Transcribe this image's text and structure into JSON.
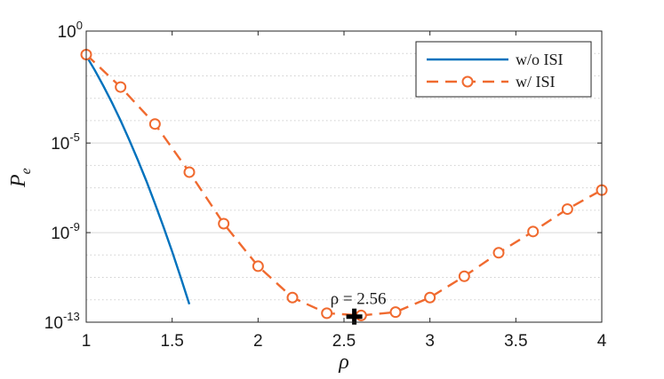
{
  "chart_data": {
    "type": "line",
    "xlabel": "ρ",
    "ylabel": "P",
    "ylabel_sub": "e",
    "yscale": "log",
    "xlim": [
      1,
      4
    ],
    "ylim_exp": [
      -13,
      0
    ],
    "x_ticks": [
      1,
      1.5,
      2,
      2.5,
      3,
      3.5,
      4
    ],
    "x_tick_labels": [
      "1",
      "1.5",
      "2",
      "2.5",
      "3",
      "3.5",
      "4"
    ],
    "y_tick_exponents": [
      0,
      -5,
      -9,
      -13
    ],
    "y_tick_base": "10",
    "y_tick_exp_labels": [
      "0",
      "-5",
      "-9",
      "-13"
    ],
    "legend_position": "top-right",
    "grid": true,
    "series": [
      {
        "name": "w/o ISI",
        "color": "#0072BD",
        "style": "solid",
        "marker": "none",
        "x": [
          1.0,
          1.05,
          1.1,
          1.15,
          1.2,
          1.25,
          1.3,
          1.35,
          1.4,
          1.45,
          1.5,
          1.55,
          1.6
        ],
        "y_exp": [
          -1.1,
          -1.75,
          -2.45,
          -3.2,
          -4.0,
          -4.85,
          -5.75,
          -6.7,
          -7.7,
          -8.75,
          -9.85,
          -11.0,
          -12.2
        ]
      },
      {
        "name": "w/ ISI",
        "color": "#F06A2F",
        "style": "dashed",
        "marker": "circle",
        "x": [
          1.0,
          1.2,
          1.4,
          1.6,
          1.8,
          2.0,
          2.2,
          2.4,
          2.6,
          2.8,
          3.0,
          3.2,
          3.4,
          3.6,
          3.8,
          4.0
        ],
        "y_exp": [
          -1.05,
          -2.5,
          -4.15,
          -6.3,
          -8.6,
          -10.5,
          -11.9,
          -12.6,
          -12.7,
          -12.55,
          -11.9,
          -10.95,
          -9.9,
          -8.95,
          -7.95,
          -7.1
        ]
      }
    ],
    "annotation": {
      "text": "ρ = 2.56",
      "x": 2.56,
      "y_exp": -12.75,
      "marker": "plus"
    }
  }
}
